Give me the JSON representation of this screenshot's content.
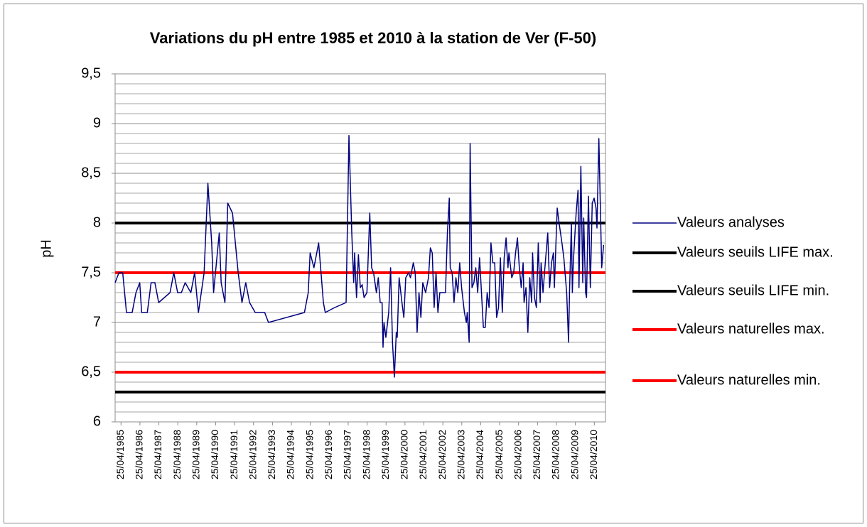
{
  "chart_data": {
    "type": "line",
    "title": "Variations du pH entre 1985 et 2010 à la station de Ver (F-50)",
    "y_label": "pH",
    "xlim": [
      1985.0,
      2010.9
    ],
    "ylim": [
      6,
      9.5
    ],
    "yticks": [
      6,
      {
        "value": 6.5,
        "label": "6,5"
      },
      7,
      {
        "value": 7.5,
        "label": "7,5"
      },
      8,
      {
        "value": 8.5,
        "label": "8,5"
      },
      9,
      {
        "value": 9.5,
        "label": "9,5"
      }
    ],
    "minor_yticks": [
      6.1,
      6.2,
      6.3,
      6.4,
      6.6,
      6.7,
      6.8,
      6.9,
      7.1,
      7.2,
      7.3,
      7.4,
      7.6,
      7.7,
      7.8,
      7.9,
      8.1,
      8.2,
      8.3,
      8.4,
      8.6,
      8.7,
      8.8,
      8.9,
      9.1,
      9.2,
      9.3,
      9.4
    ],
    "xticks": [
      {
        "value": 1985.31,
        "label": "25/04/1985"
      },
      {
        "value": 1986.31,
        "label": "25/04/1986"
      },
      {
        "value": 1987.31,
        "label": "25/04/1987"
      },
      {
        "value": 1988.31,
        "label": "25/04/1988"
      },
      {
        "value": 1989.31,
        "label": "25/04/1989"
      },
      {
        "value": 1990.31,
        "label": "25/04/1990"
      },
      {
        "value": 1991.31,
        "label": "25/04/1991"
      },
      {
        "value": 1992.31,
        "label": "25/04/1992"
      },
      {
        "value": 1993.31,
        "label": "25/04/1993"
      },
      {
        "value": 1994.31,
        "label": "25/04/1994"
      },
      {
        "value": 1995.31,
        "label": "25/04/1995"
      },
      {
        "value": 1996.31,
        "label": "25/04/1996"
      },
      {
        "value": 1997.31,
        "label": "25/04/1997"
      },
      {
        "value": 1998.31,
        "label": "25/04/1998"
      },
      {
        "value": 1999.31,
        "label": "25/04/1999"
      },
      {
        "value": 2000.31,
        "label": "25/04/2000"
      },
      {
        "value": 2001.31,
        "label": "25/04/2001"
      },
      {
        "value": 2002.31,
        "label": "25/04/2002"
      },
      {
        "value": 2003.31,
        "label": "25/04/2003"
      },
      {
        "value": 2004.31,
        "label": "25/04/2004"
      },
      {
        "value": 2005.31,
        "label": "25/04/2005"
      },
      {
        "value": 2006.31,
        "label": "25/04/2006"
      },
      {
        "value": 2007.31,
        "label": "25/04/2007"
      },
      {
        "value": 2008.31,
        "label": "25/04/2008"
      },
      {
        "value": 2009.31,
        "label": "25/04/2009"
      },
      {
        "value": 2010.31,
        "label": "25/04/2010"
      }
    ],
    "grid": true,
    "legend": "right",
    "series": [
      {
        "name": "Valeurs analyses",
        "color": "#000080",
        "width": 1.5,
        "x": [
          1985.0,
          1985.2,
          1985.4,
          1985.6,
          1985.9,
          1986.1,
          1986.3,
          1986.4,
          1986.7,
          1986.9,
          1987.1,
          1987.3,
          1987.9,
          1988.1,
          1988.3,
          1988.5,
          1988.7,
          1989.0,
          1989.2,
          1989.4,
          1989.7,
          1989.9,
          1990.1,
          1990.2,
          1990.5,
          1990.6,
          1990.8,
          1990.95,
          1991.2,
          1991.5,
          1991.7,
          1991.9,
          1992.1,
          1992.4,
          1992.7,
          1992.9,
          1993.1,
          1995.0,
          1995.2,
          1995.3,
          1995.5,
          1995.65,
          1995.75,
          1996.0,
          1996.1,
          1996.6,
          1997.2,
          1997.35,
          1997.5,
          1997.6,
          1997.65,
          1997.75,
          1997.85,
          1997.95,
          1998.05,
          1998.15,
          1998.3,
          1998.45,
          1998.55,
          1998.65,
          1998.8,
          1998.9,
          1999.0,
          1999.1,
          1999.15,
          1999.2,
          1999.3,
          1999.45,
          1999.55,
          1999.65,
          1999.75,
          1999.85,
          1999.9,
          2000.0,
          2000.15,
          2000.25,
          2000.35,
          2000.5,
          2000.6,
          2000.75,
          2000.85,
          2000.95,
          2001.05,
          2001.15,
          2001.25,
          2001.4,
          2001.55,
          2001.65,
          2001.75,
          2001.85,
          2001.95,
          2002.05,
          2002.15,
          2002.3,
          2002.45,
          2002.55,
          2002.65,
          2002.7,
          2002.8,
          2002.9,
          2003.0,
          2003.1,
          2003.2,
          2003.3,
          2003.45,
          2003.55,
          2003.6,
          2003.7,
          2003.75,
          2003.85,
          2003.95,
          2004.05,
          2004.15,
          2004.25,
          2004.35,
          2004.45,
          2004.55,
          2004.65,
          2004.75,
          2004.85,
          2004.95,
          2005.05,
          2005.15,
          2005.25,
          2005.35,
          2005.45,
          2005.55,
          2005.65,
          2005.75,
          2005.8,
          2005.95,
          2006.05,
          2006.15,
          2006.25,
          2006.35,
          2006.45,
          2006.55,
          2006.6,
          2006.7,
          2006.8,
          2006.9,
          2007.0,
          2007.05,
          2007.15,
          2007.25,
          2007.35,
          2007.45,
          2007.5,
          2007.6,
          2007.7,
          2007.85,
          2007.95,
          2008.05,
          2008.15,
          2008.2,
          2008.35,
          2008.45,
          2008.6,
          2008.7,
          2008.85,
          2008.95,
          2009.0,
          2009.1,
          2009.15,
          2009.2,
          2009.35,
          2009.45,
          2009.5,
          2009.6,
          2009.7,
          2009.75,
          2009.85,
          2009.9,
          2010.0,
          2010.1,
          2010.2,
          2010.3,
          2010.4,
          2010.45,
          2010.55,
          2010.7,
          2010.8
        ],
        "values": [
          7.4,
          7.5,
          7.5,
          7.1,
          7.1,
          7.3,
          7.4,
          7.1,
          7.1,
          7.4,
          7.4,
          7.2,
          7.3,
          7.5,
          7.3,
          7.3,
          7.4,
          7.3,
          7.5,
          7.1,
          7.5,
          8.4,
          7.8,
          7.3,
          7.9,
          7.4,
          7.2,
          8.2,
          8.1,
          7.5,
          7.2,
          7.4,
          7.2,
          7.1,
          7.1,
          7.1,
          7.0,
          7.1,
          7.3,
          7.7,
          7.55,
          7.7,
          7.8,
          7.2,
          7.1,
          7.15,
          7.2,
          8.88,
          7.9,
          7.4,
          7.7,
          7.25,
          7.68,
          7.35,
          7.38,
          7.25,
          7.3,
          8.1,
          7.55,
          7.5,
          7.3,
          7.45,
          7.2,
          7.2,
          6.75,
          7.0,
          6.85,
          7.1,
          7.55,
          6.8,
          6.45,
          6.9,
          6.85,
          7.45,
          7.2,
          7.05,
          7.45,
          7.5,
          7.45,
          7.6,
          7.5,
          6.9,
          7.3,
          7.05,
          7.4,
          7.3,
          7.45,
          7.75,
          7.7,
          7.15,
          7.5,
          7.1,
          7.3,
          7.3,
          7.3,
          7.9,
          8.25,
          7.55,
          7.5,
          7.2,
          7.45,
          7.3,
          7.6,
          7.35,
          7.1,
          7.0,
          7.1,
          6.8,
          8.8,
          7.35,
          7.4,
          7.55,
          7.3,
          7.65,
          7.3,
          6.95,
          6.95,
          7.3,
          7.15,
          7.8,
          7.6,
          7.6,
          7.05,
          7.15,
          7.65,
          7.1,
          7.65,
          7.85,
          7.55,
          7.7,
          7.45,
          7.5,
          7.7,
          7.85,
          7.55,
          7.35,
          7.6,
          7.2,
          7.35,
          6.9,
          7.45,
          7.2,
          7.7,
          7.25,
          7.15,
          7.8,
          7.2,
          7.6,
          7.3,
          7.55,
          7.9,
          7.35,
          7.6,
          7.7,
          7.35,
          8.15,
          8.0,
          7.8,
          7.65,
          7.3,
          6.8,
          7.3,
          8.0,
          7.3,
          7.6,
          8.1,
          8.33,
          7.35,
          8.57,
          7.4,
          8.05,
          7.3,
          7.25,
          8.27,
          7.35,
          8.2,
          8.25,
          8.15,
          7.95,
          8.85,
          7.55,
          7.78
        ]
      },
      {
        "name": "Valeurs seuils LIFE max.",
        "color": "#000000",
        "width": 4,
        "x": [
          1985.0,
          2010.9
        ],
        "values": [
          8,
          8
        ]
      },
      {
        "name": "Valeurs seuils LIFE min.",
        "color": "#000000",
        "width": 4,
        "x": [
          1985.0,
          2010.9
        ],
        "values": [
          6.3,
          6.3
        ]
      },
      {
        "name": "Valeurs naturelles max.",
        "color": "#ff0000",
        "width": 4,
        "x": [
          1985.0,
          2010.9
        ],
        "values": [
          7.5,
          7.5
        ]
      },
      {
        "name": "Valeurs naturelles min.",
        "color": "#ff0000",
        "width": 4,
        "x": [
          1985.0,
          2010.9
        ],
        "values": [
          6.5,
          6.5
        ]
      }
    ]
  }
}
